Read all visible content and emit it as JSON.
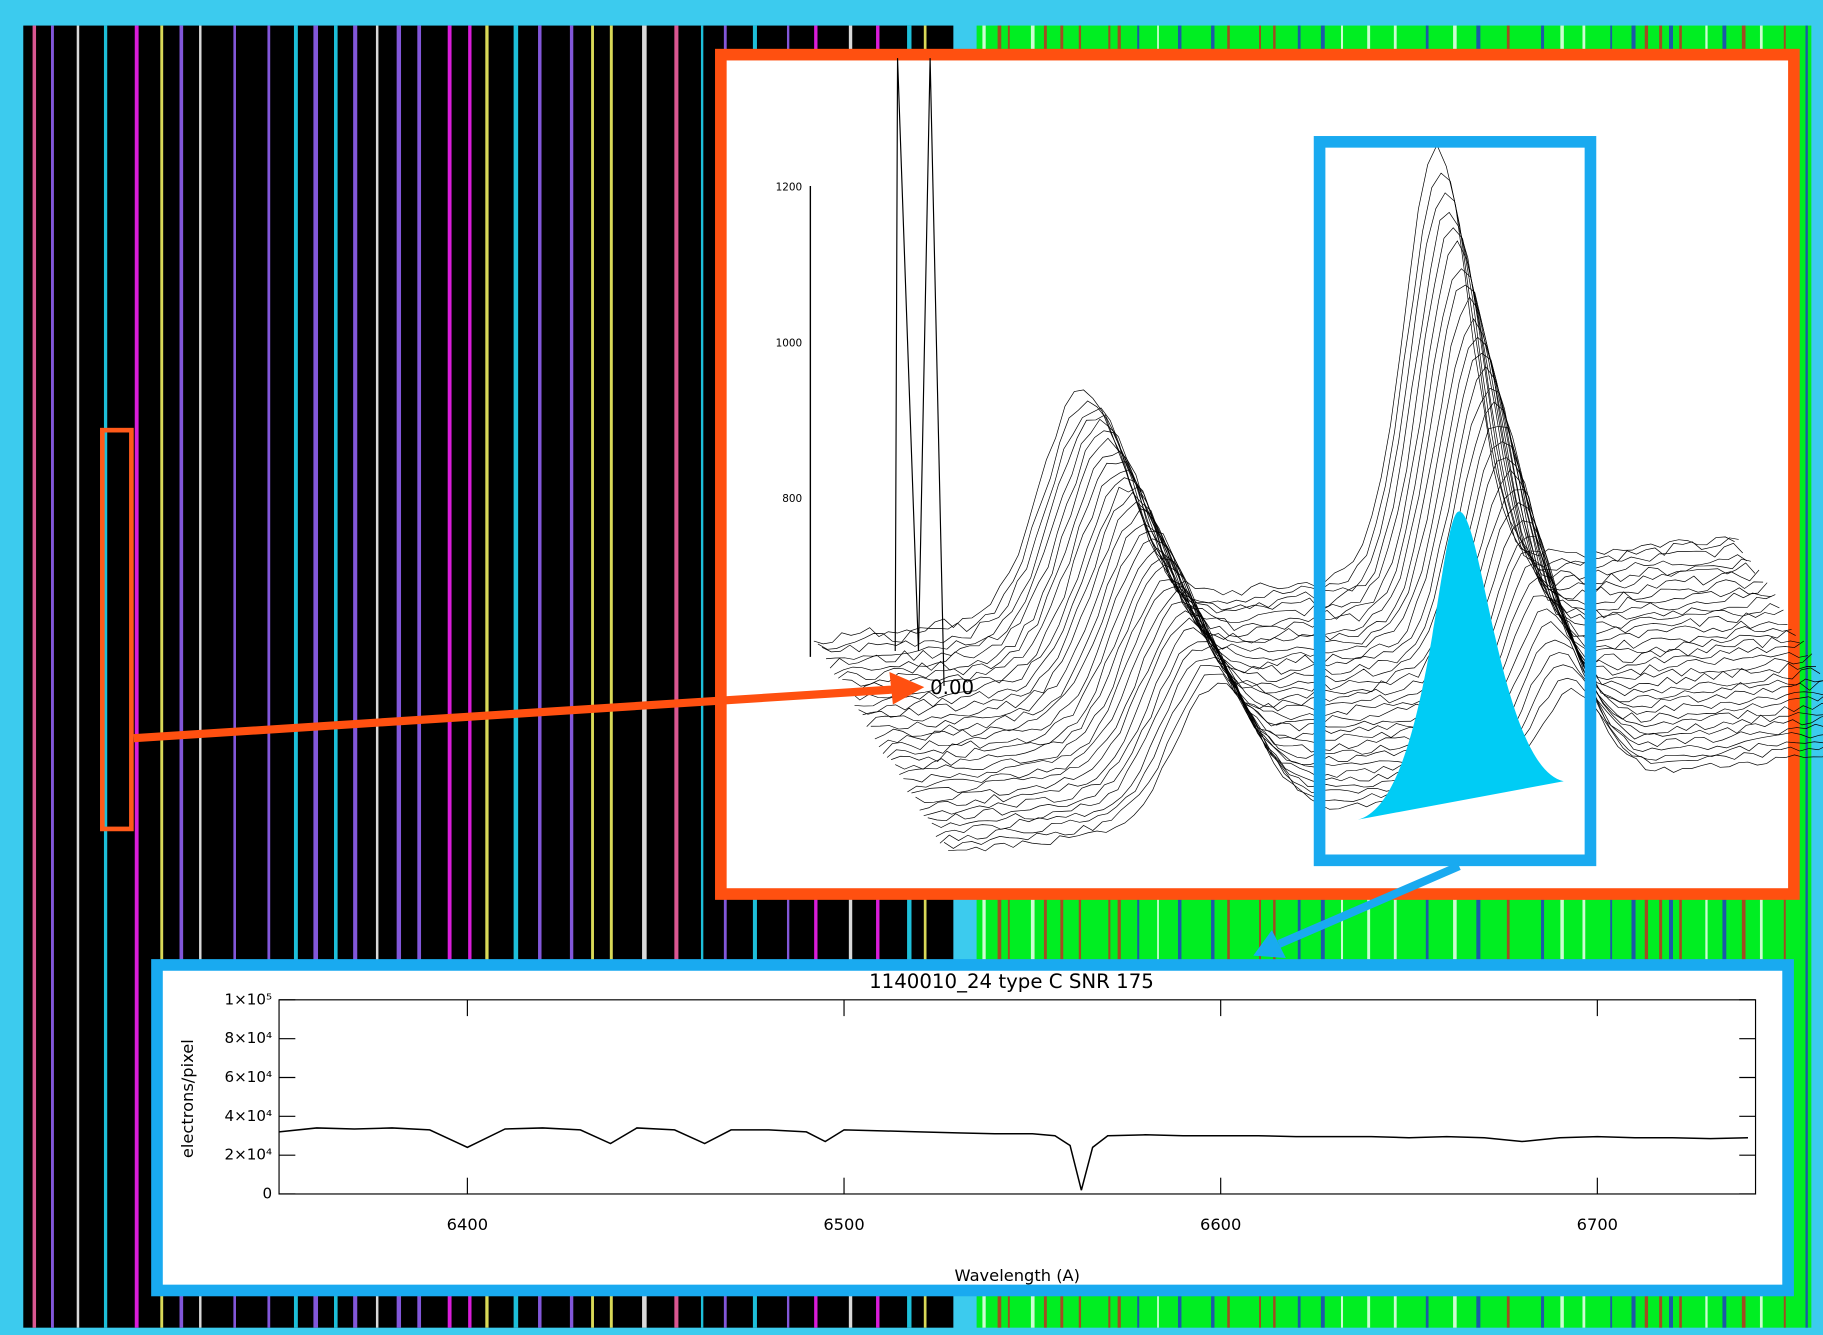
{
  "chart_data": {
    "type": "line",
    "title": "1140010_24  type C  SNR 175",
    "xlabel": "Wavelength (A)",
    "ylabel": "electrons/pixel",
    "x": [
      6350,
      6360,
      6370,
      6380,
      6390,
      6400,
      6410,
      6420,
      6430,
      6438,
      6445,
      6455,
      6463,
      6470,
      6480,
      6490,
      6495,
      6500,
      6510,
      6520,
      6530,
      6540,
      6550,
      6556,
      6560,
      6563,
      6566,
      6570,
      6580,
      6590,
      6600,
      6610,
      6620,
      6630,
      6640,
      6650,
      6660,
      6670,
      6680,
      6690,
      6700,
      6710,
      6720,
      6730,
      6740
    ],
    "values": [
      32000,
      34000,
      33500,
      34000,
      33000,
      24000,
      33500,
      34000,
      33000,
      26000,
      34000,
      33000,
      26000,
      33000,
      33000,
      32000,
      27000,
      33000,
      32500,
      32000,
      31500,
      31000,
      31000,
      30000,
      25000,
      2000,
      24000,
      30000,
      30500,
      30000,
      30000,
      30000,
      29500,
      29500,
      29500,
      29000,
      29500,
      29000,
      27000,
      29000,
      29500,
      29000,
      29000,
      28500,
      29000
    ],
    "color": "#000000",
    "xlim": [
      6350,
      6742
    ],
    "xticks": [
      6400,
      6500,
      6600,
      6700
    ],
    "ylim": [
      0,
      100000
    ],
    "yticks": [
      0,
      {
        "value": 20000,
        "label": "2×10⁴"
      },
      {
        "value": 40000,
        "label": "4×10⁴"
      },
      {
        "value": 60000,
        "label": "6×10⁴"
      },
      {
        "value": 80000,
        "label": "8×10⁴"
      },
      {
        "value": 100000,
        "label": "1×10⁵"
      }
    ],
    "grid": false
  },
  "surface_plot": {
    "axis_labels": [
      "1200",
      "1000",
      "800"
    ],
    "annotation": "0.00"
  }
}
